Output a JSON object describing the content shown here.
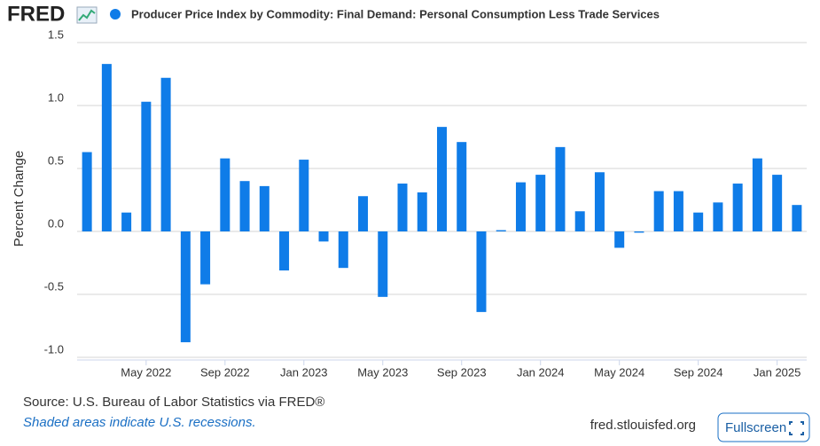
{
  "chart_data": {
    "type": "bar",
    "logo": "FRED",
    "title": "Producer Price Index by Commodity: Final Demand: Personal Consumption Less Trade Services",
    "series": [
      {
        "name": "Producer Price Index by Commodity: Final Demand: Personal Consumption Less Trade Services",
        "color": "#0f7ce8",
        "values": [
          0.63,
          1.33,
          0.15,
          1.03,
          1.22,
          -0.88,
          -0.42,
          0.58,
          0.4,
          0.36,
          -0.31,
          0.57,
          -0.08,
          -0.29,
          0.28,
          -0.52,
          0.38,
          0.31,
          0.83,
          0.71,
          -0.64,
          0.01,
          0.39,
          0.45,
          0.67,
          0.16,
          0.47,
          -0.13,
          -0.01,
          0.32,
          0.32,
          0.15,
          0.23,
          0.38,
          0.58,
          0.45,
          0.21
        ]
      }
    ],
    "categories": [
      null,
      null,
      null,
      "May 2022",
      null,
      null,
      null,
      "Sep 2022",
      null,
      null,
      null,
      "Jan 2023",
      null,
      null,
      null,
      "May 2023",
      null,
      null,
      null,
      "Sep 2023",
      null,
      null,
      null,
      "Jan 2024",
      null,
      null,
      null,
      "May 2024",
      null,
      null,
      null,
      "Sep 2024",
      null,
      null,
      null,
      "Jan 2025",
      null
    ],
    "ylabel": "Percent Change",
    "ylim": [
      -1.0,
      1.5
    ],
    "yticks": [
      {
        "value": -1.0,
        "label": "-1.0"
      },
      {
        "value": -0.5,
        "label": "-0.5"
      },
      {
        "value": 0.0,
        "label": "0.0"
      },
      {
        "value": 0.5,
        "label": "0.5"
      },
      {
        "value": 1.0,
        "label": "1.0"
      },
      {
        "value": 1.5,
        "label": "1.5"
      }
    ],
    "grid": true,
    "source": "Source: U.S. Bureau of Labor Statistics via FRED®",
    "note": "Shaded areas indicate U.S. recessions.",
    "site": "fred.stlouisfed.org",
    "button": "Fullscreen"
  }
}
